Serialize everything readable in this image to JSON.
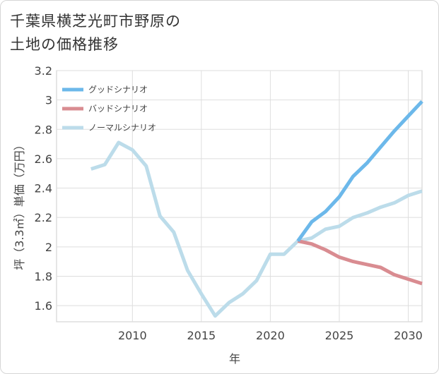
{
  "title_line1": "千葉県横芝光町市野原の",
  "title_line2": "土地の価格推移",
  "chart_data": {
    "type": "line",
    "title": "千葉県横芝光町市野原の土地の価格推移",
    "xlabel": "年",
    "ylabel": "坪（3.3㎡）単価（万円）",
    "xlim": [
      2004.5,
      2031
    ],
    "ylim": [
      1.49,
      3.2
    ],
    "x_ticks": [
      2010,
      2015,
      2020,
      2025,
      2030
    ],
    "y_ticks": [
      1.6,
      1.8,
      2,
      2.2,
      2.4,
      2.6,
      2.8,
      3,
      3.2
    ],
    "y_tick_labels": [
      "1.6",
      "1.8",
      "2",
      "2.2",
      "2.4",
      "2.6",
      "2.8",
      "3",
      "3.2"
    ],
    "legend_position": "top-left",
    "series": [
      {
        "name": "グッドシナリオ",
        "color": "#6cb8ea",
        "x": [
          2022,
          2023,
          2024,
          2025,
          2026,
          2027,
          2028,
          2029,
          2030,
          2031
        ],
        "values": [
          2.04,
          2.17,
          2.24,
          2.34,
          2.48,
          2.57,
          2.68,
          2.79,
          2.89,
          2.99
        ]
      },
      {
        "name": "バッドシナリオ",
        "color": "#d98c91",
        "x": [
          2022,
          2023,
          2024,
          2025,
          2026,
          2027,
          2028,
          2029,
          2030,
          2031
        ],
        "values": [
          2.04,
          2.02,
          1.98,
          1.93,
          1.9,
          1.88,
          1.86,
          1.81,
          1.78,
          1.75
        ]
      },
      {
        "name": "ノーマルシナリオ",
        "color": "#bcdcea",
        "x": [
          2007,
          2008,
          2009,
          2010,
          2011,
          2012,
          2013,
          2014,
          2015,
          2016,
          2017,
          2018,
          2019,
          2020,
          2021,
          2022,
          2023,
          2024,
          2025,
          2026,
          2027,
          2028,
          2029,
          2030,
          2031
        ],
        "values": [
          2.53,
          2.56,
          2.71,
          2.66,
          2.55,
          2.21,
          2.1,
          1.84,
          1.68,
          1.53,
          1.62,
          1.68,
          1.77,
          1.95,
          1.95,
          2.04,
          2.06,
          2.12,
          2.14,
          2.2,
          2.23,
          2.27,
          2.3,
          2.35,
          2.38
        ]
      }
    ]
  }
}
